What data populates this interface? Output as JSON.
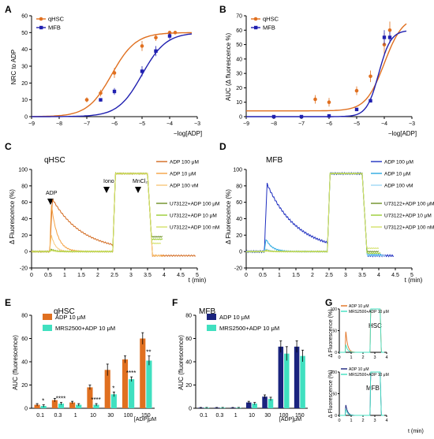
{
  "panels": {
    "A": {
      "letter": "A",
      "ylabel": "NRC to ADP",
      "xlabel": "−log[ADP]",
      "legend": [
        "qHSC",
        "MFB"
      ]
    },
    "B": {
      "letter": "B",
      "ylabel": "AUC (Δ fluorescence %)",
      "xlabel": "−log[ADP]",
      "legend": [
        "qHSC",
        "MFB"
      ]
    },
    "C": {
      "letter": "C",
      "title": "qHSC",
      "ylabel": "Δ Fluorescence (%)",
      "xlabel": "t (min)",
      "annotations": [
        "ADP",
        "Iono",
        "MnCl₂"
      ],
      "legend": [
        "ADP 100 μM",
        "ADP 10 μM",
        "ADP 100 vM",
        "U73122+ADP 100 μM",
        "U73122+ADP 10 μM",
        "U73122+ADP 100 nM"
      ]
    },
    "D": {
      "letter": "D",
      "title": "MFB",
      "ylabel": "Δ Fluorescence (%)",
      "xlabel": "t (min)",
      "legend": [
        "ADP 100 μM",
        "ADP 10 μM",
        "ADP 100 vM",
        "U73122+ADP 100 μM",
        "U73122+ADP 10 μM",
        "U73122+ADP 100 nM"
      ]
    },
    "E": {
      "letter": "E",
      "title": "qHSC",
      "ylabel": "AUC (fluorescence)",
      "xlabel": "[ADP]μM",
      "legend": [
        "ADP 10 μM",
        "MRS2500+ADP 10 μM"
      ]
    },
    "F": {
      "letter": "F",
      "title": "MFB",
      "ylabel": "AUC (fluorescence)",
      "xlabel": "[ADP]μM",
      "legend": [
        "ADP 10 μM",
        "MRS2500+ADP 10 μM"
      ]
    },
    "G": {
      "letter": "G",
      "ylabel": "Δ Fluorescence (%)",
      "xlabel": "t (min)",
      "top": {
        "label": "HSC",
        "legend": [
          "ADP 10 μM",
          "MRS2500+ADP 10 μM"
        ]
      },
      "bottom": {
        "label": "MFB",
        "legend": [
          "ADP 10 μM",
          "MRS2500+ADP 10 μM"
        ]
      }
    }
  },
  "colors": {
    "orange": "#e07020",
    "blue": "#2020b0",
    "navy": "#1a237e",
    "teal": "#40e0c0"
  },
  "chart_data": [
    {
      "id": "A",
      "type": "scatter",
      "xlim": [
        -9,
        -3
      ],
      "ylim": [
        0,
        60
      ],
      "xticks": [
        -9,
        -8,
        -7,
        -6,
        -5,
        -4,
        -3
      ],
      "yticks": [
        0,
        10,
        20,
        30,
        40,
        50,
        60
      ],
      "ylabel": "NRC to ADP",
      "xlabel": "−log[ADP]",
      "series": [
        {
          "name": "qHSC",
          "color": "#e07020",
          "x": [
            -7,
            -6.5,
            -6,
            -5,
            -4.5,
            -4,
            -3.8
          ],
          "y": [
            10,
            14,
            26,
            42,
            47,
            50,
            50
          ],
          "err": [
            1.5,
            2,
            3,
            3,
            2,
            1,
            1
          ],
          "fit": {
            "bottom": 0,
            "top": 50,
            "logec50": -6.1,
            "hill": 1
          }
        },
        {
          "name": "MFB",
          "color": "#2020b0",
          "x": [
            -6.5,
            -6,
            -5,
            -4.5,
            -4
          ],
          "y": [
            10,
            15,
            27,
            39,
            48
          ],
          "err": [
            1,
            2,
            3,
            3,
            2
          ],
          "fit": {
            "bottom": 0,
            "top": 50,
            "logec50": -5.0,
            "hill": 1
          }
        }
      ]
    },
    {
      "id": "B",
      "type": "scatter",
      "xlim": [
        -9,
        -3
      ],
      "ylim": [
        0,
        70
      ],
      "xticks": [
        -9,
        -8,
        -7,
        -6,
        -5,
        -4,
        -3
      ],
      "yticks": [
        0,
        10,
        20,
        30,
        40,
        50,
        60,
        70
      ],
      "ylabel": "AUC (Δ fluorescence %)",
      "xlabel": "−log[ADP]",
      "series": [
        {
          "name": "qHSC",
          "color": "#e07020",
          "x": [
            -6.5,
            -6,
            -5,
            -4.5,
            -4,
            -3.8
          ],
          "y": [
            12,
            10,
            18,
            28,
            50,
            60
          ],
          "err": [
            3,
            3,
            3,
            4,
            8,
            6
          ],
          "fit": {
            "bottom": 4,
            "top": 70,
            "logec50": -4.0,
            "hill": 1.3
          }
        },
        {
          "name": "MFB",
          "color": "#2020b0",
          "x": [
            -8,
            -7,
            -6,
            -5,
            -4.5,
            -4,
            -3.8
          ],
          "y": [
            0,
            0,
            0.5,
            5,
            11,
            55,
            55
          ],
          "err": [
            0.5,
            0.5,
            1,
            1,
            1,
            5,
            4
          ],
          "fit": {
            "bottom": 0,
            "top": 60,
            "logec50": -4.2,
            "hill": 2
          }
        }
      ]
    },
    {
      "id": "C",
      "type": "line",
      "xlim": [
        0,
        5
      ],
      "ylim": [
        -20,
        100
      ],
      "xticks": [
        0,
        0.5,
        1,
        1.5,
        2,
        2.5,
        3,
        3.5,
        4,
        4.5,
        5
      ],
      "yticks": [
        -20,
        0,
        20,
        40,
        60,
        80,
        100
      ],
      "series": [
        {
          "name": "ADP 100 μM",
          "color": "#d2691e"
        },
        {
          "name": "ADP 10 μM",
          "color": "#f5a142"
        },
        {
          "name": "ADP 100 vM",
          "color": "#f8c87a"
        },
        {
          "name": "U73122+ADP 100 μM",
          "color": "#6b8e23"
        },
        {
          "name": "U73122+ADP 10 μM",
          "color": "#9acd32"
        },
        {
          "name": "U73122+ADP 100 nM",
          "color": "#d4e06a"
        }
      ]
    },
    {
      "id": "D",
      "type": "line",
      "xlim": [
        0,
        5
      ],
      "ylim": [
        -20,
        100
      ],
      "xticks": [
        0,
        0.5,
        1,
        1.5,
        2,
        2.5,
        3,
        3.5,
        4,
        4.5,
        5
      ],
      "yticks": [
        -20,
        0,
        20,
        40,
        60,
        80,
        100
      ],
      "series": [
        {
          "name": "ADP 100 μM",
          "color": "#1f2fc0"
        },
        {
          "name": "ADP 10 μM",
          "color": "#29a8e0"
        },
        {
          "name": "ADP 100 vM",
          "color": "#9fd8f5"
        },
        {
          "name": "U73122+ADP 100 μM",
          "color": "#6b8e23"
        },
        {
          "name": "U73122+ADP 10 μM",
          "color": "#9acd32"
        },
        {
          "name": "U73122+ADP 100 nM",
          "color": "#d4e06a"
        }
      ]
    },
    {
      "id": "E",
      "type": "bar",
      "ylim": [
        0,
        80
      ],
      "yticks": [
        0,
        20,
        40,
        60,
        80
      ],
      "categories": [
        "0.1",
        "0.3",
        "1",
        "10",
        "30",
        "100",
        "150"
      ],
      "series": [
        {
          "name": "ADP 10 μM",
          "color": "#e07020",
          "values": [
            3,
            7,
            5,
            18,
            33,
            42,
            60
          ],
          "err": [
            1,
            1.5,
            1,
            2,
            5,
            3,
            5
          ]
        },
        {
          "name": "MRS2500+ADP 10 μM",
          "color": "#40e0c0",
          "values": [
            2,
            4,
            3,
            3,
            12,
            25,
            41
          ],
          "err": [
            1,
            1,
            1,
            1,
            2,
            2,
            4
          ]
        }
      ],
      "significance": [
        "*",
        "****",
        "",
        "****",
        "*",
        "****",
        "**"
      ]
    },
    {
      "id": "F",
      "type": "bar",
      "ylim": [
        0,
        80
      ],
      "yticks": [
        0,
        20,
        40,
        60,
        80
      ],
      "categories": [
        "0.1",
        "0.3",
        "1",
        "10",
        "30",
        "100",
        "150"
      ],
      "series": [
        {
          "name": "ADP 10 μM",
          "color": "#1a237e",
          "values": [
            0.5,
            0.5,
            0.5,
            5,
            10,
            53,
            53
          ],
          "err": [
            0.2,
            0.2,
            0.2,
            1,
            1.5,
            5,
            5
          ]
        },
        {
          "name": "MRS2500+ADP 10 μM",
          "color": "#40e0c0",
          "values": [
            0.5,
            0.5,
            0.5,
            4,
            8,
            47,
            45
          ],
          "err": [
            0.2,
            0.2,
            0.2,
            1,
            1.5,
            6,
            5
          ]
        }
      ]
    },
    {
      "id": "G-top",
      "type": "line",
      "xlim": [
        0,
        4
      ],
      "ylim": [
        0,
        100
      ],
      "xticks": [
        0,
        1,
        2,
        3,
        4
      ],
      "yticks": [
        0,
        50,
        100
      ],
      "series": [
        {
          "name": "ADP 10 μM",
          "color": "#e07020"
        },
        {
          "name": "MRS2500+ADP 10 μM",
          "color": "#40e0c0"
        }
      ]
    },
    {
      "id": "G-bottom",
      "type": "line",
      "xlim": [
        0,
        4
      ],
      "ylim": [
        0,
        100
      ],
      "xticks": [
        0,
        1,
        2,
        3,
        4
      ],
      "yticks": [
        0,
        50,
        100
      ],
      "series": [
        {
          "name": "ADP 10 μM",
          "color": "#1a237e"
        },
        {
          "name": "MRS2500+ADP 10 μM",
          "color": "#40e0c0"
        }
      ]
    }
  ]
}
